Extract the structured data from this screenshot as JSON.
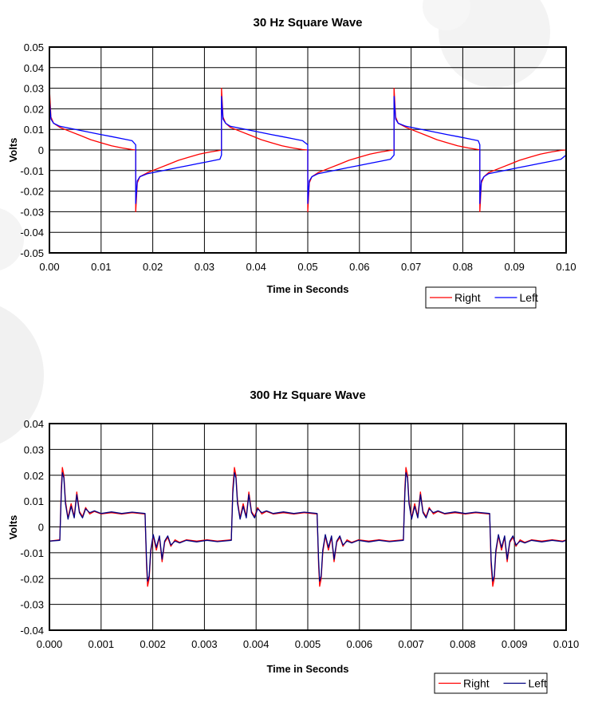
{
  "colors": {
    "right": "#ff0000",
    "left": "#0000ff",
    "left2": "#000080",
    "grid": "#000000",
    "watermark": "#f0f0f0"
  },
  "chart_data": [
    {
      "type": "line",
      "title": "30 Hz Square Wave",
      "xlabel": "Time in Seconds",
      "ylabel": "Volts",
      "xlim": [
        0,
        0.1
      ],
      "ylim": [
        -0.05,
        0.05
      ],
      "x_ticks": [
        "0.00",
        "0.01",
        "0.02",
        "0.03",
        "0.04",
        "0.05",
        "0.06",
        "0.07",
        "0.08",
        "0.09",
        "0.10"
      ],
      "y_ticks": [
        "0.05",
        "0.04",
        "0.03",
        "0.02",
        "0.01",
        "0",
        "-0.01",
        "-0.02",
        "-0.03",
        "-0.04",
        "-0.05"
      ],
      "grid": true,
      "legend_position": "bottom-right",
      "series": [
        {
          "name": "Right",
          "color": "#ff0000",
          "x": [
            0,
            0.0003,
            0.0008,
            0.002,
            0.004,
            0.006,
            0.008,
            0.01,
            0.012,
            0.014,
            0.016,
            0.0167,
            0.0167,
            0.017,
            0.0175,
            0.019,
            0.021,
            0.023,
            0.025,
            0.027,
            0.029,
            0.031,
            0.033,
            0.0333,
            0.0333,
            0.0336,
            0.0341,
            0.035,
            0.037,
            0.039,
            0.041,
            0.043,
            0.045,
            0.047,
            0.049,
            0.05,
            0.05,
            0.0503,
            0.0508,
            0.052,
            0.054,
            0.056,
            0.058,
            0.06,
            0.062,
            0.064,
            0.066,
            0.0667,
            0.0667,
            0.067,
            0.0675,
            0.069,
            0.071,
            0.073,
            0.075,
            0.077,
            0.079,
            0.081,
            0.083,
            0.0833,
            0.0833,
            0.0836,
            0.0841,
            0.085,
            0.087,
            0.089,
            0.091,
            0.093,
            0.095,
            0.097,
            0.099,
            0.1
          ],
          "y": [
            0.03,
            0.016,
            0.013,
            0.011,
            0.009,
            0.007,
            0.005,
            0.0035,
            0.002,
            0.001,
            0.0002,
            0.0,
            -0.03,
            -0.016,
            -0.013,
            -0.011,
            -0.009,
            -0.007,
            -0.005,
            -0.0035,
            -0.002,
            -0.001,
            -0.0002,
            0.0,
            0.03,
            0.016,
            0.013,
            0.011,
            0.009,
            0.007,
            0.005,
            0.0035,
            0.002,
            0.001,
            0.0002,
            0.0,
            -0.03,
            -0.016,
            -0.013,
            -0.011,
            -0.009,
            -0.007,
            -0.005,
            -0.0035,
            -0.002,
            -0.001,
            -0.0002,
            0.0,
            0.03,
            0.016,
            0.013,
            0.011,
            0.009,
            0.007,
            0.005,
            0.0035,
            0.002,
            0.001,
            0.0002,
            0.0,
            -0.03,
            -0.016,
            -0.013,
            -0.011,
            -0.009,
            -0.007,
            -0.005,
            -0.0035,
            -0.002,
            -0.001,
            -0.0002,
            0.0
          ]
        },
        {
          "name": "Left",
          "color": "#0000ff",
          "x": [
            0,
            0.0003,
            0.0008,
            0.002,
            0.004,
            0.006,
            0.008,
            0.01,
            0.012,
            0.014,
            0.016,
            0.0167,
            0.0167,
            0.017,
            0.0175,
            0.019,
            0.021,
            0.023,
            0.025,
            0.027,
            0.029,
            0.031,
            0.033,
            0.0333,
            0.0333,
            0.0336,
            0.0341,
            0.035,
            0.037,
            0.039,
            0.041,
            0.043,
            0.045,
            0.047,
            0.049,
            0.05,
            0.05,
            0.0503,
            0.0508,
            0.052,
            0.054,
            0.056,
            0.058,
            0.06,
            0.062,
            0.064,
            0.066,
            0.0667,
            0.0667,
            0.067,
            0.0675,
            0.069,
            0.071,
            0.073,
            0.075,
            0.077,
            0.079,
            0.081,
            0.083,
            0.0833,
            0.0833,
            0.0836,
            0.0841,
            0.085,
            0.087,
            0.089,
            0.091,
            0.093,
            0.095,
            0.097,
            0.099,
            0.1
          ],
          "y": [
            0.025,
            0.015,
            0.013,
            0.0115,
            0.0105,
            0.0095,
            0.0085,
            0.0075,
            0.0065,
            0.0055,
            0.0045,
            0.0025,
            -0.026,
            -0.015,
            -0.013,
            -0.0115,
            -0.0105,
            -0.0095,
            -0.0085,
            -0.0075,
            -0.0065,
            -0.0055,
            -0.0045,
            -0.0025,
            0.026,
            0.015,
            0.013,
            0.0115,
            0.0105,
            0.0095,
            0.0085,
            0.0075,
            0.0065,
            0.0055,
            0.0045,
            0.0025,
            -0.026,
            -0.015,
            -0.013,
            -0.0115,
            -0.0105,
            -0.0095,
            -0.0085,
            -0.0075,
            -0.0065,
            -0.0055,
            -0.0045,
            -0.0025,
            0.026,
            0.015,
            0.013,
            0.0115,
            0.0105,
            0.0095,
            0.0085,
            0.0075,
            0.0065,
            0.0055,
            0.0045,
            0.0025,
            -0.026,
            -0.015,
            -0.013,
            -0.0115,
            -0.0105,
            -0.0095,
            -0.0085,
            -0.0075,
            -0.0065,
            -0.0055,
            -0.0045,
            -0.0025
          ]
        }
      ]
    },
    {
      "type": "line",
      "title": "300 Hz Square Wave",
      "xlabel": "Time in Seconds",
      "ylabel": "Volts",
      "xlim": [
        0,
        0.01
      ],
      "ylim": [
        -0.04,
        0.04
      ],
      "x_ticks": [
        "0.000",
        "0.001",
        "0.002",
        "0.003",
        "0.004",
        "0.005",
        "0.006",
        "0.007",
        "0.008",
        "0.009",
        "0.010"
      ],
      "y_ticks": [
        "0.04",
        "0.03",
        "0.02",
        "0.01",
        "0",
        "-0.01",
        "-0.02",
        "-0.03",
        "-0.04"
      ],
      "grid": true,
      "legend_position": "bottom-right",
      "series": [
        {
          "name": "Right",
          "color": "#ff0000",
          "x": [
            0,
            0.0002,
            0.00023,
            0.00025,
            0.00028,
            0.00031,
            0.00036,
            0.00042,
            0.00048,
            0.00053,
            0.00058,
            0.00064,
            0.0007,
            0.00078,
            0.00087,
            0.001,
            0.0012,
            0.0014,
            0.0016,
            0.00185,
            0.00188,
            0.0019,
            0.00193,
            0.00196,
            0.00201,
            0.00207,
            0.00213,
            0.00218,
            0.00223,
            0.00229,
            0.00235,
            0.00243,
            0.00252,
            0.00265,
            0.00285,
            0.00305,
            0.00325,
            0.00352,
            0.00355,
            0.00358,
            0.00361,
            0.00364,
            0.00369,
            0.00375,
            0.00381,
            0.00386,
            0.00391,
            0.00397,
            0.00403,
            0.00411,
            0.0042,
            0.00433,
            0.00453,
            0.00473,
            0.00493,
            0.00518,
            0.00521,
            0.00523,
            0.00526,
            0.00529,
            0.00534,
            0.0054,
            0.00546,
            0.00551,
            0.00556,
            0.00562,
            0.00568,
            0.00576,
            0.00585,
            0.00598,
            0.00618,
            0.00638,
            0.00658,
            0.00685,
            0.00688,
            0.0069,
            0.00693,
            0.00696,
            0.00701,
            0.00707,
            0.00713,
            0.00718,
            0.00723,
            0.00729,
            0.00735,
            0.00743,
            0.00752,
            0.00765,
            0.00785,
            0.00805,
            0.00825,
            0.00852,
            0.00855,
            0.00858,
            0.00861,
            0.00864,
            0.00869,
            0.00875,
            0.00881,
            0.00886,
            0.00891,
            0.00897,
            0.00903,
            0.00911,
            0.0092,
            0.00933,
            0.00953,
            0.00973,
            0.00993,
            0.01
          ],
          "y": [
            -0.0055,
            -0.005,
            0.015,
            0.023,
            0.02,
            0.01,
            0.0035,
            0.009,
            0.004,
            0.0135,
            0.006,
            0.004,
            0.0075,
            0.005,
            0.006,
            0.005,
            0.0055,
            0.005,
            0.0055,
            0.005,
            -0.015,
            -0.023,
            -0.02,
            -0.01,
            -0.0035,
            -0.009,
            -0.004,
            -0.0135,
            -0.006,
            -0.004,
            -0.0075,
            -0.005,
            -0.006,
            -0.005,
            -0.0055,
            -0.005,
            -0.0055,
            -0.005,
            0.015,
            0.023,
            0.02,
            0.01,
            0.0035,
            0.009,
            0.004,
            0.0135,
            0.006,
            0.004,
            0.0075,
            0.005,
            0.006,
            0.005,
            0.0055,
            0.005,
            0.0055,
            0.005,
            -0.015,
            -0.023,
            -0.02,
            -0.01,
            -0.0035,
            -0.009,
            -0.004,
            -0.0135,
            -0.006,
            -0.004,
            -0.0075,
            -0.005,
            -0.006,
            -0.005,
            -0.0055,
            -0.005,
            -0.0055,
            -0.005,
            0.015,
            0.023,
            0.02,
            0.01,
            0.0035,
            0.009,
            0.004,
            0.0135,
            0.006,
            0.004,
            0.0075,
            0.005,
            0.006,
            0.005,
            0.0055,
            0.005,
            0.0055,
            0.005,
            -0.015,
            -0.023,
            -0.02,
            -0.01,
            -0.0035,
            -0.009,
            -0.004,
            -0.0135,
            -0.006,
            -0.004,
            -0.0075,
            -0.005,
            -0.006,
            -0.005,
            -0.0055,
            -0.005,
            -0.0055,
            -0.005
          ]
        },
        {
          "name": "Left",
          "color": "#000080",
          "x": [
            0,
            0.0002,
            0.00023,
            0.00025,
            0.00028,
            0.00031,
            0.00036,
            0.00042,
            0.00048,
            0.00053,
            0.00058,
            0.00064,
            0.0007,
            0.00078,
            0.00087,
            0.001,
            0.0012,
            0.0014,
            0.0016,
            0.00185,
            0.00188,
            0.0019,
            0.00193,
            0.00196,
            0.00201,
            0.00207,
            0.00213,
            0.00218,
            0.00223,
            0.00229,
            0.00235,
            0.00243,
            0.00252,
            0.00265,
            0.00285,
            0.00305,
            0.00325,
            0.00352,
            0.00355,
            0.00358,
            0.00361,
            0.00364,
            0.00369,
            0.00375,
            0.00381,
            0.00386,
            0.00391,
            0.00397,
            0.00403,
            0.00411,
            0.0042,
            0.00433,
            0.00453,
            0.00473,
            0.00493,
            0.00518,
            0.00521,
            0.00523,
            0.00526,
            0.00529,
            0.00534,
            0.0054,
            0.00546,
            0.00551,
            0.00556,
            0.00562,
            0.00568,
            0.00576,
            0.00585,
            0.00598,
            0.00618,
            0.00638,
            0.00658,
            0.00685,
            0.00688,
            0.0069,
            0.00693,
            0.00696,
            0.00701,
            0.00707,
            0.00713,
            0.00718,
            0.00723,
            0.00729,
            0.00735,
            0.00743,
            0.00752,
            0.00765,
            0.00785,
            0.00805,
            0.00825,
            0.00852,
            0.00855,
            0.00858,
            0.00861,
            0.00864,
            0.00869,
            0.00875,
            0.00881,
            0.00886,
            0.00891,
            0.00897,
            0.00903,
            0.00911,
            0.0092,
            0.00933,
            0.00953,
            0.00973,
            0.00993,
            0.01
          ],
          "y": [
            -0.0055,
            -0.0052,
            0.013,
            0.021,
            0.019,
            0.009,
            0.003,
            0.008,
            0.0035,
            0.0125,
            0.0055,
            0.0035,
            0.007,
            0.0055,
            0.0062,
            0.0052,
            0.0058,
            0.0052,
            0.0057,
            0.0052,
            -0.013,
            -0.021,
            -0.019,
            -0.009,
            -0.003,
            -0.008,
            -0.0035,
            -0.0125,
            -0.0055,
            -0.0035,
            -0.007,
            -0.0055,
            -0.0062,
            -0.0052,
            -0.0058,
            -0.0052,
            -0.0057,
            -0.0052,
            0.013,
            0.021,
            0.019,
            0.009,
            0.003,
            0.008,
            0.0035,
            0.0125,
            0.0055,
            0.0035,
            0.007,
            0.0055,
            0.0062,
            0.0052,
            0.0058,
            0.0052,
            0.0057,
            0.0052,
            -0.013,
            -0.021,
            -0.019,
            -0.009,
            -0.003,
            -0.008,
            -0.0035,
            -0.0125,
            -0.0055,
            -0.0035,
            -0.007,
            -0.0055,
            -0.0062,
            -0.0052,
            -0.0058,
            -0.0052,
            -0.0057,
            -0.0052,
            0.013,
            0.021,
            0.019,
            0.009,
            0.003,
            0.008,
            0.0035,
            0.0125,
            0.0055,
            0.0035,
            0.007,
            0.0055,
            0.0062,
            0.0052,
            0.0058,
            0.0052,
            0.0057,
            0.0052,
            -0.013,
            -0.021,
            -0.019,
            -0.009,
            -0.003,
            -0.008,
            -0.0035,
            -0.0125,
            -0.0055,
            -0.0035,
            -0.007,
            -0.0055,
            -0.0062,
            -0.0052,
            -0.0058,
            -0.0052,
            -0.0057,
            -0.0052
          ]
        }
      ]
    }
  ]
}
